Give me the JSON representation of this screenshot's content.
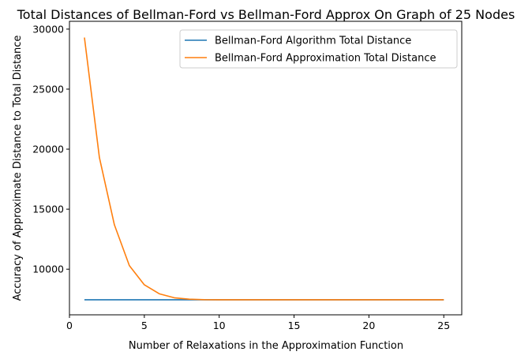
{
  "chart_data": {
    "type": "line",
    "title": "Total Distances of Bellman-Ford vs Bellman-Ford Approx On Graph of 25 Nodes",
    "xlabel": "Number of Relaxations in the Approximation Function",
    "ylabel": "Accuracy of Approximate Distance to Total Distance",
    "xlim": [
      0,
      26.2
    ],
    "ylim": [
      6200,
      30650
    ],
    "xticks": [
      0,
      5,
      10,
      15,
      20,
      25
    ],
    "yticks": [
      10000,
      15000,
      20000,
      25000,
      30000
    ],
    "grid": false,
    "legend_position": "top-right",
    "x": [
      1,
      2,
      3,
      4,
      5,
      6,
      7,
      8,
      9,
      10,
      11,
      12,
      13,
      14,
      15,
      16,
      17,
      18,
      19,
      20,
      21,
      22,
      23,
      24,
      25
    ],
    "series": [
      {
        "name": "Bellman-Ford Algorithm Total Distance",
        "color": "#1f77b4",
        "values": [
          7450,
          7450,
          7450,
          7450,
          7450,
          7450,
          7450,
          7450,
          7450,
          7450,
          7450,
          7450,
          7450,
          7450,
          7450,
          7450,
          7450,
          7450,
          7450,
          7450,
          7450,
          7450,
          7450,
          7450,
          7450
        ]
      },
      {
        "name": "Bellman-Ford Approximation Total Distance",
        "color": "#ff7f0e",
        "values": [
          29300,
          19300,
          13700,
          10300,
          8700,
          7950,
          7620,
          7500,
          7460,
          7450,
          7450,
          7450,
          7450,
          7450,
          7450,
          7450,
          7450,
          7450,
          7450,
          7450,
          7450,
          7450,
          7450,
          7450,
          7450
        ]
      }
    ]
  }
}
